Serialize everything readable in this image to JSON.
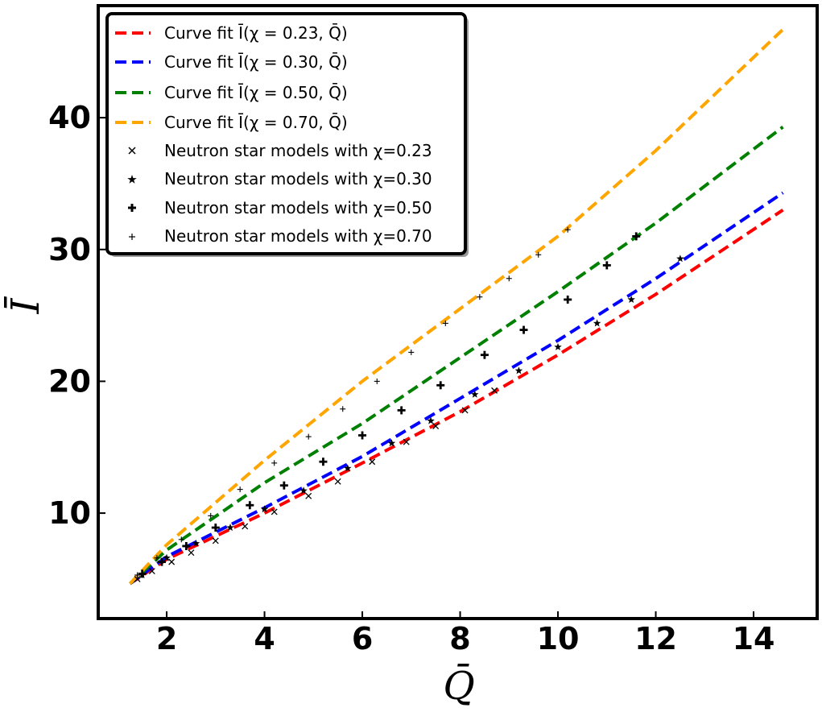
{
  "chart_data": {
    "type": "line",
    "xlabel": "Q̄",
    "ylabel": "Ī",
    "xlim": [
      0.6,
      15.3
    ],
    "ylim": [
      2.0,
      48.5
    ],
    "xticks": [
      2,
      4,
      6,
      8,
      10,
      12,
      14
    ],
    "yticks": [
      10,
      20,
      30,
      40
    ],
    "grid": false,
    "legend_position": "top-left",
    "fit_series": [
      {
        "name": "Curve fit Ī(χ = 0.23, Q̄)",
        "color": "#ff0000",
        "style": "dashed",
        "x": [
          1.25,
          2,
          4,
          6,
          8,
          10,
          12,
          14.6
        ],
        "y": [
          4.65,
          6.5,
          10.0,
          13.8,
          17.7,
          22.0,
          26.6,
          33.0
        ]
      },
      {
        "name": "Curve fit Ī(χ = 0.30, Q̄)",
        "color": "#0000ff",
        "style": "dashed",
        "x": [
          1.25,
          2,
          4,
          6,
          8,
          10,
          12,
          14.6
        ],
        "y": [
          4.65,
          6.7,
          10.4,
          14.3,
          18.7,
          23.1,
          27.8,
          34.3
        ]
      },
      {
        "name": "Curve fit Ī(χ = 0.50, Q̄)",
        "color": "#008000",
        "style": "dashed",
        "x": [
          1.25,
          2,
          4,
          6,
          8,
          10,
          12,
          14.6
        ],
        "y": [
          4.65,
          7.2,
          12.3,
          16.8,
          21.8,
          26.8,
          32.0,
          39.3
        ]
      },
      {
        "name": "Curve fit Ī(χ = 0.70, Q̄)",
        "color": "#ffa500",
        "style": "dashed",
        "x": [
          1.25,
          2,
          4,
          6,
          8,
          10,
          12,
          14.6
        ],
        "y": [
          4.65,
          7.6,
          14.0,
          20.0,
          25.5,
          31.0,
          37.5,
          46.7
        ]
      }
    ],
    "scatter_series": [
      {
        "name": "Neutron star models with χ=0.23",
        "marker": "x",
        "x": [
          1.4,
          1.7,
          2.1,
          2.5,
          3.0,
          3.6,
          4.2,
          4.9,
          5.5,
          6.2,
          6.9,
          7.5,
          8.1,
          8.7
        ],
        "y": [
          5.0,
          5.6,
          6.3,
          7.0,
          7.9,
          9.0,
          10.1,
          11.3,
          12.4,
          13.9,
          15.4,
          16.6,
          17.8,
          19.3
        ]
      },
      {
        "name": "Neutron star models with χ=0.30",
        "marker": "star",
        "x": [
          1.5,
          2.0,
          2.6,
          3.3,
          4.0,
          4.8,
          5.7,
          6.6,
          7.4,
          8.3,
          9.2,
          10.0,
          10.8,
          11.5,
          12.5
        ],
        "y": [
          5.3,
          6.6,
          7.7,
          8.9,
          10.3,
          11.7,
          13.4,
          15.3,
          17.0,
          19.0,
          20.8,
          22.6,
          24.4,
          26.2,
          29.3
        ]
      },
      {
        "name": "Neutron star models with χ=0.50",
        "marker": "plus-bold",
        "x": [
          1.5,
          1.9,
          2.4,
          3.0,
          3.7,
          4.4,
          5.2,
          6.0,
          6.8,
          7.6,
          8.5,
          9.3,
          10.2,
          11.0,
          11.6
        ],
        "y": [
          5.4,
          6.3,
          7.5,
          8.9,
          10.6,
          12.1,
          13.9,
          15.9,
          17.8,
          19.7,
          22.0,
          23.9,
          26.2,
          28.8,
          31.0
        ]
      },
      {
        "name": "Neutron star models with χ=0.70",
        "marker": "plus",
        "x": [
          1.4,
          1.8,
          2.3,
          2.9,
          3.5,
          4.2,
          4.9,
          5.6,
          6.3,
          7.0,
          7.7,
          8.4,
          9.0,
          9.6,
          10.2
        ],
        "y": [
          5.3,
          6.6,
          8.0,
          9.8,
          11.8,
          13.8,
          15.8,
          17.9,
          20.0,
          22.2,
          24.4,
          26.4,
          27.8,
          29.6,
          31.5
        ]
      }
    ]
  }
}
